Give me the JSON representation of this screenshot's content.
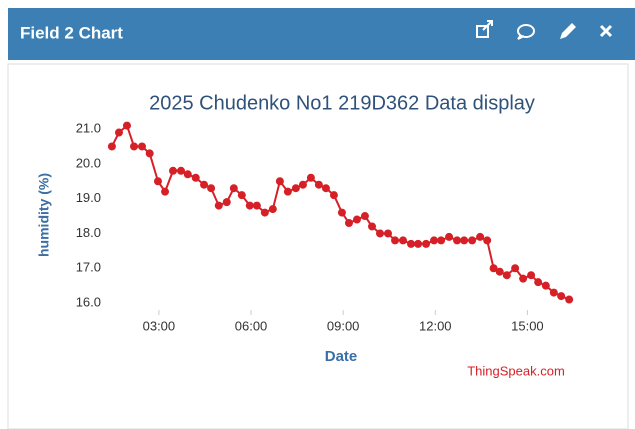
{
  "header": {
    "title": "Field 2 Chart"
  },
  "chart_data": {
    "type": "line",
    "title": "2025 Chudenko No1 219D362 Data display",
    "x_label": "Date",
    "y_label": "humidity (%)",
    "credit": "ThingSpeak.com",
    "color": "#d62027",
    "grid": false,
    "x": [
      1.47,
      1.7,
      1.96,
      2.19,
      2.45,
      2.7,
      2.97,
      3.2,
      3.46,
      3.72,
      3.94,
      4.2,
      4.47,
      4.7,
      4.95,
      5.21,
      5.44,
      5.7,
      5.96,
      6.19,
      6.45,
      6.71,
      6.94,
      7.2,
      7.46,
      7.69,
      7.95,
      8.21,
      8.44,
      8.7,
      8.96,
      9.19,
      9.45,
      9.71,
      9.94,
      10.2,
      10.46,
      10.69,
      10.95,
      11.21,
      11.44,
      11.7,
      11.96,
      12.19,
      12.45,
      12.71,
      12.94,
      13.2,
      13.46,
      13.69,
      13.9,
      14.1,
      14.33,
      14.6,
      14.86,
      15.12,
      15.35,
      15.6,
      15.86,
      16.1,
      16.36
    ],
    "values": [
      20.5,
      20.9,
      21.1,
      20.5,
      20.5,
      20.3,
      19.5,
      19.2,
      19.8,
      19.8,
      19.7,
      19.6,
      19.4,
      19.3,
      18.8,
      18.9,
      19.3,
      19.1,
      18.8,
      18.8,
      18.6,
      18.7,
      19.5,
      19.2,
      19.3,
      19.4,
      19.6,
      19.4,
      19.3,
      19.1,
      18.6,
      18.3,
      18.4,
      18.5,
      18.2,
      18.0,
      18.0,
      17.8,
      17.8,
      17.7,
      17.7,
      17.7,
      17.8,
      17.8,
      17.9,
      17.8,
      17.8,
      17.8,
      17.9,
      17.8,
      17.0,
      16.9,
      16.8,
      17.0,
      16.7,
      16.8,
      16.6,
      16.5,
      16.3,
      16.2,
      16.1
    ],
    "xlim": [
      1.31,
      16.55
    ],
    "xticks": [
      {
        "value": 3,
        "label": "03:00"
      },
      {
        "value": 6,
        "label": "06:00"
      },
      {
        "value": 9,
        "label": "09:00"
      },
      {
        "value": 12,
        "label": "12:00"
      },
      {
        "value": 15,
        "label": "15:00"
      }
    ],
    "ylim": [
      15.8,
      21.26
    ],
    "yticks": [
      {
        "value": 16,
        "label": "16.0"
      },
      {
        "value": 17,
        "label": "17.0"
      },
      {
        "value": 18,
        "label": "18.0"
      },
      {
        "value": 19,
        "label": "19.0"
      },
      {
        "value": 20,
        "label": "20.0"
      },
      {
        "value": 21,
        "label": "21.0"
      }
    ]
  }
}
